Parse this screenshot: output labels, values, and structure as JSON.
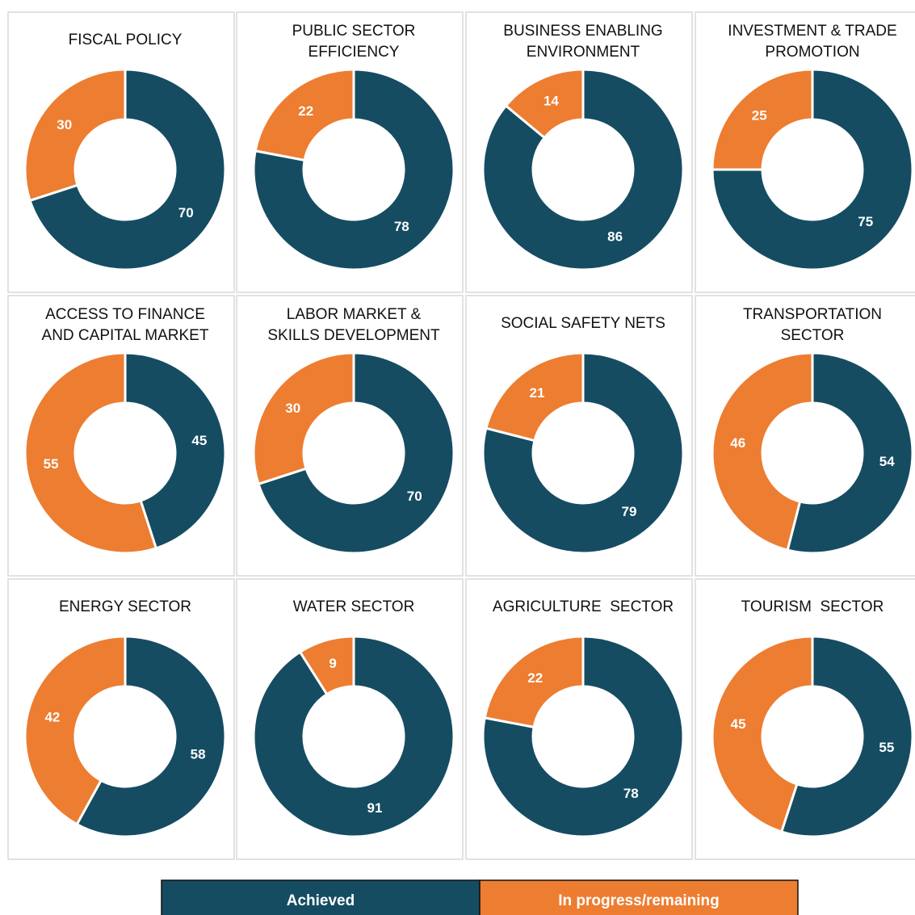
{
  "legend": [
    {
      "name": "Achieved",
      "color": "#154c62"
    },
    {
      "name": "In progress/remaining",
      "color": "#ed7d31"
    }
  ],
  "chart_data": [
    {
      "type": "donut",
      "title": [
        "FISCAL POLICY"
      ],
      "values": [
        70,
        30
      ]
    },
    {
      "type": "donut",
      "title": [
        "PUBLIC SECTOR",
        "EFFICIENCY"
      ],
      "values": [
        78,
        22
      ]
    },
    {
      "type": "donut",
      "title": [
        "BUSINESS ENABLING",
        "ENVIRONMENT"
      ],
      "values": [
        86,
        14
      ]
    },
    {
      "type": "donut",
      "title": [
        "INVESTMENT & TRADE",
        "PROMOTION"
      ],
      "values": [
        75,
        25
      ]
    },
    {
      "type": "donut",
      "title": [
        "ACCESS TO FINANCE",
        "AND CAPITAL MARKET"
      ],
      "values": [
        45,
        55
      ]
    },
    {
      "type": "donut",
      "title": [
        "LABOR MARKET &",
        "SKILLS DEVELOPMENT"
      ],
      "values": [
        70,
        30
      ]
    },
    {
      "type": "donut",
      "title": [
        "SOCIAL SAFETY NETS"
      ],
      "values": [
        79,
        21
      ]
    },
    {
      "type": "donut",
      "title": [
        "TRANSPORTATION",
        "SECTOR"
      ],
      "values": [
        54,
        46
      ]
    },
    {
      "type": "donut",
      "title": [
        "ENERGY SECTOR"
      ],
      "values": [
        58,
        42
      ]
    },
    {
      "type": "donut",
      "title": [
        "WATER SECTOR"
      ],
      "values": [
        91,
        9
      ]
    },
    {
      "type": "donut",
      "title": [
        "AGRICULTURE  SECTOR"
      ],
      "values": [
        78,
        22
      ]
    },
    {
      "type": "donut",
      "title": [
        "TOURISM  SECTOR"
      ],
      "values": [
        55,
        45
      ]
    }
  ]
}
